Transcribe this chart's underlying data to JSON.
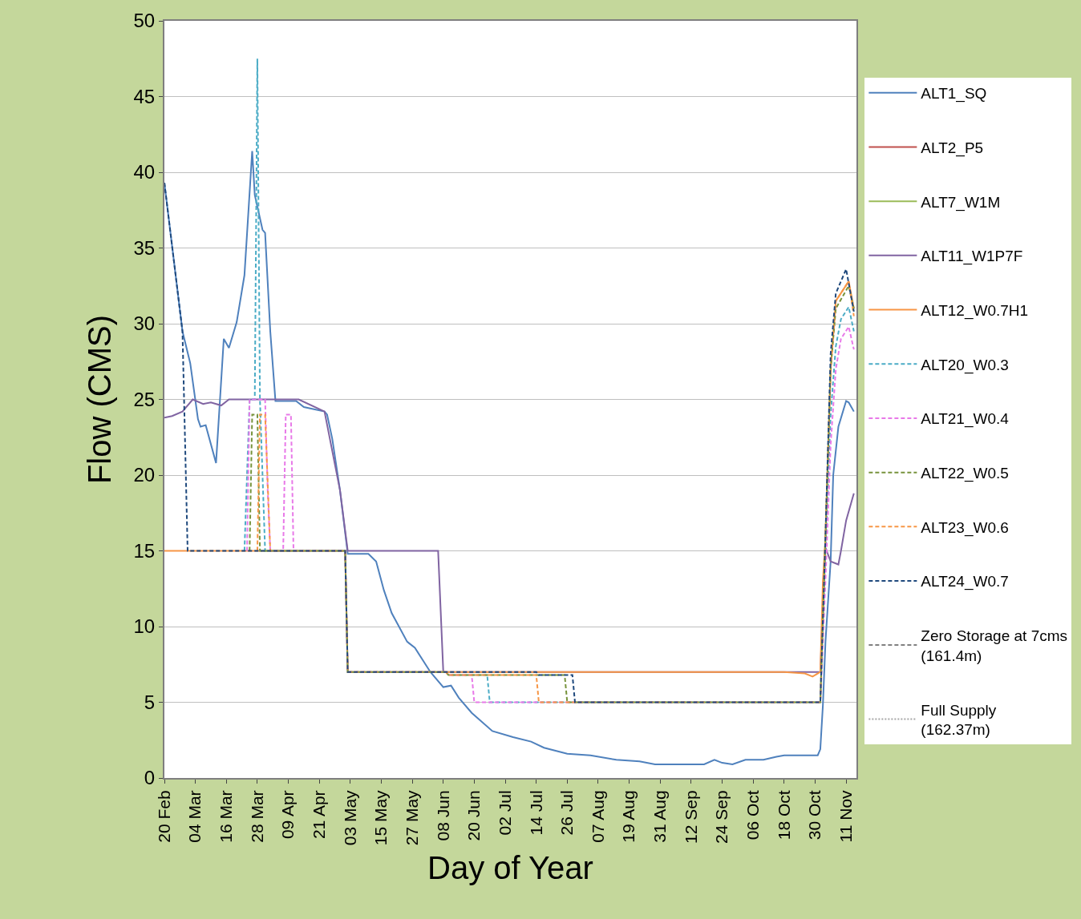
{
  "chart_data": {
    "type": "line",
    "xlabel": "Day of Year",
    "ylabel": "Flow (CMS)",
    "xlim": [
      "--02-20",
      "--11-15"
    ],
    "ylim": [
      0,
      50
    ],
    "xticks": [
      {
        "value": "--02-20",
        "label": "20 Feb"
      },
      {
        "value": "--03-04",
        "label": "04 Mar"
      },
      {
        "value": "--03-16",
        "label": "16 Mar"
      },
      {
        "value": "--03-28",
        "label": "28 Mar"
      },
      {
        "value": "--04-09",
        "label": "09 Apr"
      },
      {
        "value": "--04-21",
        "label": "21 Apr"
      },
      {
        "value": "--05-03",
        "label": "03 May"
      },
      {
        "value": "--05-15",
        "label": "15 May"
      },
      {
        "value": "--05-27",
        "label": "27 May"
      },
      {
        "value": "--06-08",
        "label": "08 Jun"
      },
      {
        "value": "--06-20",
        "label": "20 Jun"
      },
      {
        "value": "--07-02",
        "label": "02 Jul"
      },
      {
        "value": "--07-14",
        "label": "14 Jul"
      },
      {
        "value": "--07-26",
        "label": "26 Jul"
      },
      {
        "value": "--08-07",
        "label": "07 Aug"
      },
      {
        "value": "--08-19",
        "label": "19 Aug"
      },
      {
        "value": "--08-31",
        "label": "31 Aug"
      },
      {
        "value": "--09-12",
        "label": "12 Sep"
      },
      {
        "value": "--09-24",
        "label": "24 Sep"
      },
      {
        "value": "--10-06",
        "label": "06 Oct"
      },
      {
        "value": "--10-18",
        "label": "18 Oct"
      },
      {
        "value": "--10-30",
        "label": "30 Oct"
      },
      {
        "value": "--11-11",
        "label": "11 Nov"
      }
    ],
    "yticks": [
      0,
      5,
      10,
      15,
      20,
      25,
      30,
      35,
      40,
      45,
      50
    ],
    "grid": "y",
    "legend": "right",
    "marker": "none",
    "series": [
      {
        "name": "ALT1_SQ",
        "color": "#4f81bd",
        "line_style": "solid",
        "x": [
          "--02-20",
          "--02-27",
          "--03-02",
          "--03-05",
          "--03-06",
          "--03-08",
          "--03-12",
          "--03-15",
          "--03-17",
          "--03-20",
          "--03-23",
          "--03-26",
          "--03-27",
          "--03-30",
          "--03-31",
          "--04-02",
          "--04-04",
          "--04-12",
          "--04-15",
          "--04-23",
          "--04-24",
          "--04-26",
          "--04-29",
          "--05-02",
          "--05-10",
          "--05-13",
          "--05-16",
          "--05-19",
          "--05-25",
          "--05-28",
          "--06-03",
          "--06-08",
          "--06-11",
          "--06-14",
          "--06-19",
          "--06-27",
          "--07-05",
          "--07-12",
          "--07-17",
          "--07-26",
          "--08-04",
          "--08-14",
          "--08-23",
          "--08-29",
          "--09-17",
          "--09-21",
          "--09-24",
          "--09-28",
          "--10-03",
          "--10-10",
          "--10-15",
          "--10-18",
          "--10-31",
          "--11-01",
          "--11-02",
          "--11-03",
          "--11-05",
          "--11-06",
          "--11-08",
          "--11-11",
          "--11-12",
          "--11-14"
        ],
        "values": [
          39.3,
          29.5,
          27.4,
          23.7,
          23.2,
          23.3,
          20.8,
          29.0,
          28.4,
          30.1,
          33.2,
          41.4,
          38.5,
          36.2,
          36.0,
          29.5,
          24.9,
          24.9,
          24.5,
          24.2,
          24.0,
          22.4,
          19.0,
          14.8,
          14.8,
          14.3,
          12.4,
          10.9,
          9.0,
          8.6,
          7.0,
          6.0,
          6.1,
          5.3,
          4.3,
          3.1,
          2.7,
          2.4,
          2.0,
          1.6,
          1.5,
          1.2,
          1.1,
          0.9,
          0.9,
          1.2,
          1.0,
          0.9,
          1.2,
          1.2,
          1.4,
          1.5,
          1.5,
          1.9,
          4.8,
          9.0,
          14.3,
          20.0,
          23.2,
          24.9,
          24.8,
          24.2
        ]
      },
      {
        "name": "ALT2_P5",
        "color": "#c0504d",
        "line_style": "solid"
      },
      {
        "name": "ALT7_W1M",
        "color": "#9bbb59",
        "line_style": "solid"
      },
      {
        "name": "ALT11_W1P7F",
        "color": "#8064a2",
        "line_style": "solid",
        "x": [
          "--02-20",
          "--02-23",
          "--02-27",
          "--03-03",
          "--03-07",
          "--03-10",
          "--03-14",
          "--03-17",
          "--03-30",
          "--04-13",
          "--04-23",
          "--04-29",
          "--05-02",
          "--06-06",
          "--06-08",
          "--11-01",
          "--11-03",
          "--11-05",
          "--11-08",
          "--11-09",
          "--11-11",
          "--11-14"
        ],
        "values": [
          23.8,
          23.9,
          24.2,
          25.0,
          24.7,
          24.8,
          24.6,
          25.0,
          25.0,
          25.0,
          24.2,
          19.0,
          15.0,
          15.0,
          7.0,
          7.0,
          15.2,
          14.3,
          14.1,
          15.0,
          17.0,
          18.8
        ]
      },
      {
        "name": "ALT12_W0.7H1",
        "color": "#f79646",
        "line_style": "solid",
        "x": [
          "--02-20",
          "--05-01",
          "--05-02",
          "--10-18",
          "--10-26",
          "--10-29",
          "--11-01",
          "--11-02",
          "--11-03",
          "--11-05",
          "--11-07",
          "--11-12",
          "--11-14"
        ],
        "values": [
          15,
          15,
          7,
          7,
          6.9,
          6.7,
          7,
          13,
          15.8,
          27,
          31.5,
          32.8,
          31
        ]
      },
      {
        "name": "ALT20_W0.3",
        "color": "#4bacc6",
        "line_style": "dashed",
        "x": [
          "--03-23",
          "--03-25",
          "--03-27",
          "--03-28",
          "--03-29",
          "--03-31",
          "--05-01",
          "--05-02",
          "--06-09",
          "--06-10",
          "--06-25",
          "--06-26",
          "--11-01",
          "--11-03",
          "--11-05",
          "--11-07",
          "--11-09",
          "--11-12",
          "--11-14"
        ],
        "values": [
          15,
          25,
          25,
          47.5,
          25,
          15,
          15,
          7,
          7,
          6.8,
          6.8,
          5,
          5,
          15,
          24,
          28.5,
          30.3,
          31.1,
          29.5
        ]
      },
      {
        "name": "ALT21_W0.4",
        "color": "#e879e8",
        "line_style": "dashed",
        "x": [
          "--03-24",
          "--03-25",
          "--03-31",
          "--04-01",
          "--04-02",
          "--04-07",
          "--04-08",
          "--04-10",
          "--04-11",
          "--05-01",
          "--05-02",
          "--06-09",
          "--06-10",
          "--06-19",
          "--06-20",
          "--11-01",
          "--11-03",
          "--11-05",
          "--11-07",
          "--11-09",
          "--11-12",
          "--11-14"
        ],
        "values": [
          15,
          25,
          25,
          19,
          15,
          15,
          24,
          24,
          15,
          15,
          7,
          7,
          6.8,
          6.8,
          5,
          5,
          13,
          22,
          27,
          29,
          29.8,
          28.3
        ]
      },
      {
        "name": "ALT22_W0.5",
        "color": "#77933c",
        "line_style": "dashed",
        "x": [
          "--03-25",
          "--03-26",
          "--03-28",
          "--03-29",
          "--05-01",
          "--05-02",
          "--06-09",
          "--06-10",
          "--07-25",
          "--07-26",
          "--11-01",
          "--11-03",
          "--11-05",
          "--11-07",
          "--11-12",
          "--11-14"
        ],
        "values": [
          15,
          24,
          24,
          15,
          15,
          7,
          7,
          6.8,
          6.8,
          5,
          5,
          16,
          27,
          31,
          32.5,
          31
        ]
      },
      {
        "name": "ALT23_W0.6",
        "color": "#f79646",
        "line_style": "dashed",
        "x": [
          "--03-28",
          "--03-29",
          "--03-31",
          "--04-02",
          "--05-01",
          "--05-02",
          "--06-09",
          "--06-10",
          "--07-14",
          "--07-15",
          "--11-01",
          "--11-03",
          "--11-05",
          "--11-07",
          "--11-12",
          "--11-14"
        ],
        "values": [
          15,
          24,
          24,
          15,
          15,
          7,
          7,
          6.8,
          6.8,
          5,
          5,
          16,
          27,
          31.5,
          32.8,
          30.5
        ]
      },
      {
        "name": "ALT24_W0.7",
        "color": "#1f497d",
        "line_style": "dashed",
        "x": [
          "--02-20",
          "--02-27",
          "--03-01",
          "--05-01",
          "--05-02",
          "--07-14",
          "--07-15",
          "--07-28",
          "--07-29",
          "--11-01",
          "--11-03",
          "--11-05",
          "--11-07",
          "--11-11",
          "--11-14"
        ],
        "values": [
          39.3,
          29.5,
          15,
          15,
          7,
          7,
          6.8,
          6.8,
          5,
          5,
          16,
          28,
          32,
          33.6,
          30.8
        ]
      },
      {
        "name": "Zero Storage at 7cms (161.4m)",
        "color": "#808080",
        "line_style": "dashed"
      },
      {
        "name": "Full Supply (162.37m)",
        "color": "#a6a6a6",
        "line_style": "dotted"
      }
    ]
  }
}
